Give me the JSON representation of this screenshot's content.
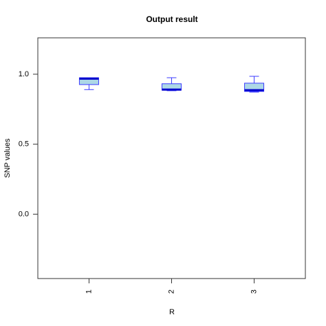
{
  "chart_data": {
    "type": "box",
    "title": "Output result",
    "x_label": "R",
    "y_label": "SNP values",
    "categories": [
      "1",
      "2",
      "3"
    ],
    "boxes": [
      {
        "min": 0.89,
        "q1": 0.926,
        "median": 0.968,
        "q3": 0.975,
        "max": 0.975
      },
      {
        "min": 0.882,
        "q1": 0.886,
        "median": 0.89,
        "q3": 0.932,
        "max": 0.975
      },
      {
        "min": 0.872,
        "q1": 0.877,
        "median": 0.886,
        "q3": 0.936,
        "max": 0.985
      }
    ],
    "fill": "#add8e6",
    "color": "#3a3aff",
    "median_color": "#0000cd",
    "ylim": [
      -0.46,
      1.26
    ],
    "yticks": [
      {
        "value": 0,
        "label": "0.0"
      },
      0.5,
      {
        "value": 1,
        "label": "1.0"
      }
    ]
  }
}
